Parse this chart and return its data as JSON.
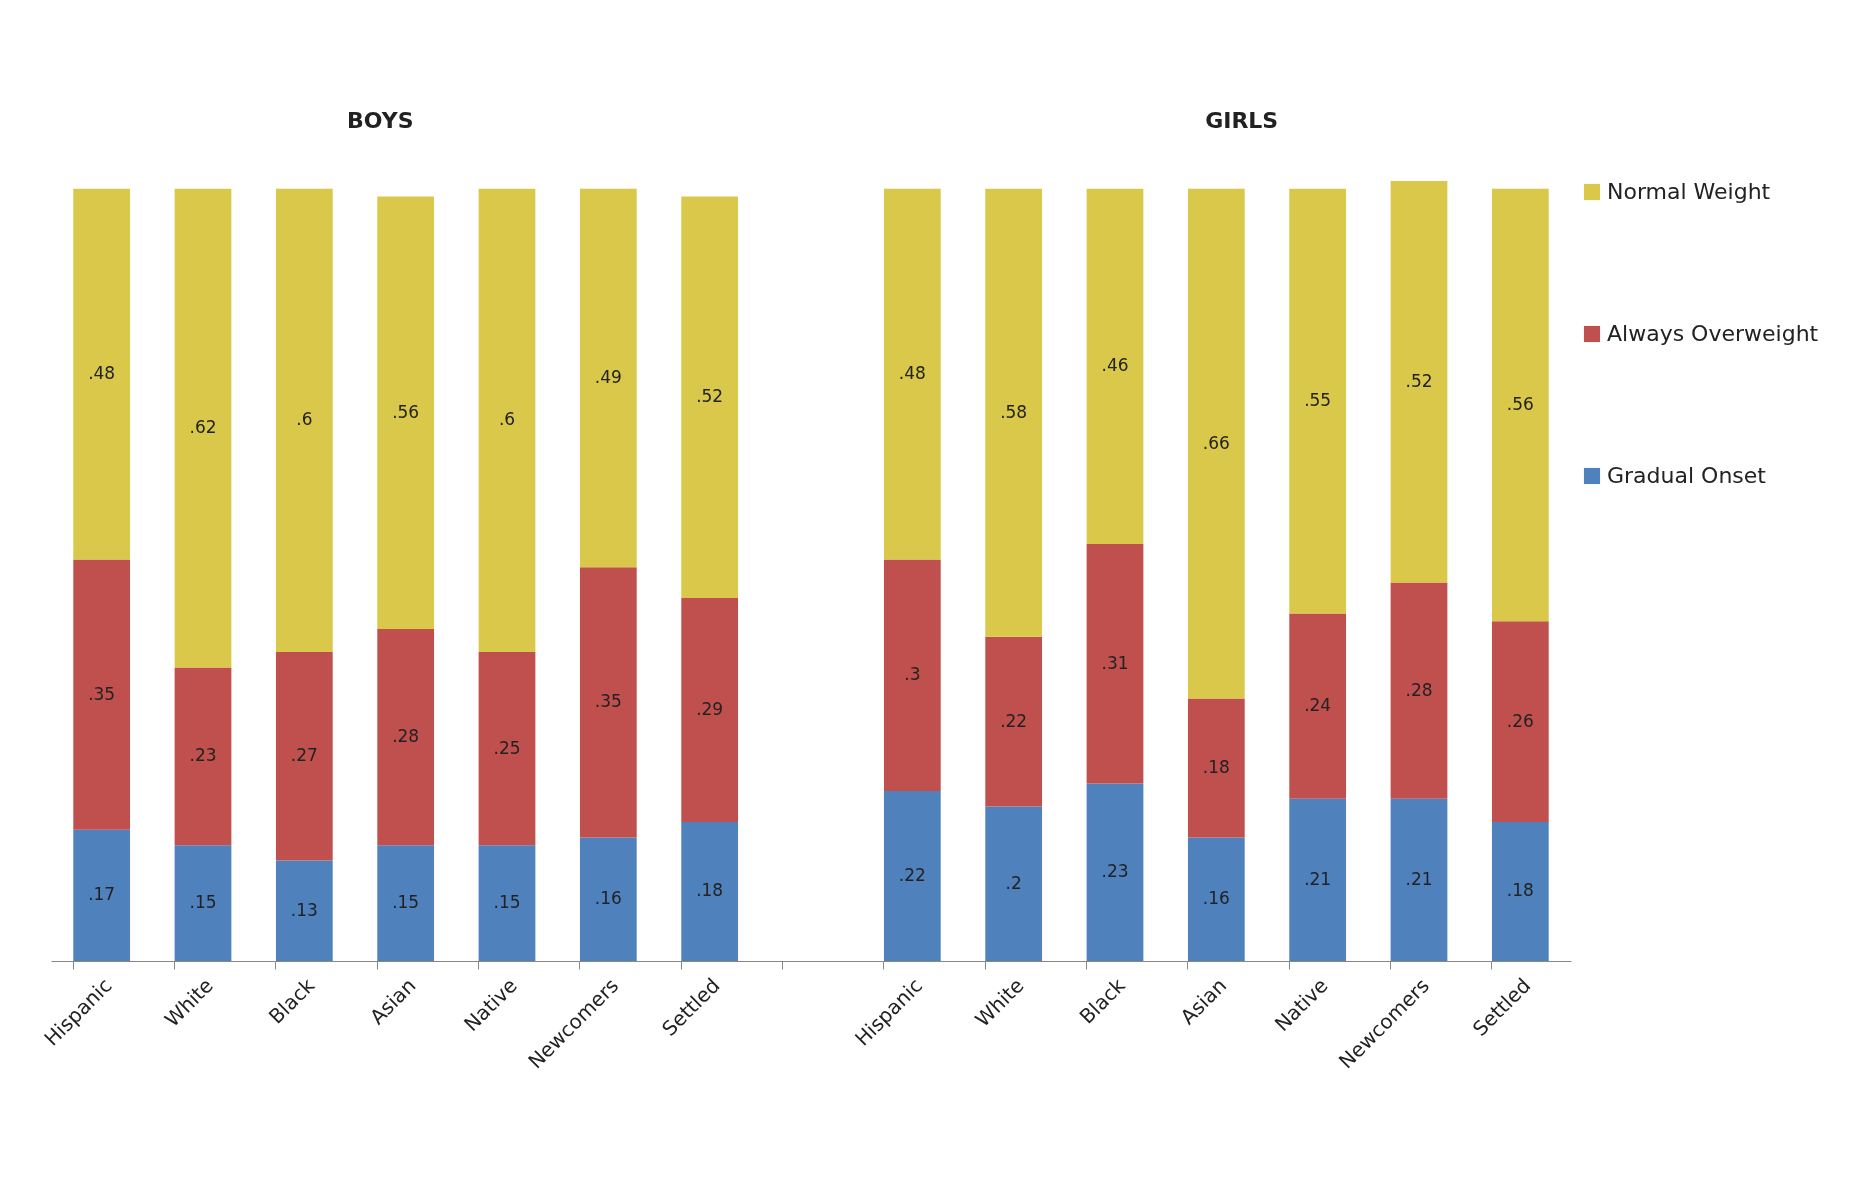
{
  "chart_data": {
    "type": "bar",
    "stacked": true,
    "legend": "right",
    "categories": [
      "Hispanic",
      "White",
      "Black",
      "Asian",
      "Native",
      "Newcomers",
      "Settled",
      null,
      "Hispanic",
      "White",
      "Black",
      "Asian",
      "Native",
      "Newcomers",
      "Settled"
    ],
    "series": [
      {
        "name": "Gradual Onset",
        "color": "#4f81bd",
        "values": [
          0.17,
          0.15,
          0.13,
          0.15,
          0.15,
          0.16,
          0.18,
          null,
          0.22,
          0.2,
          0.23,
          0.16,
          0.21,
          0.21,
          0.18
        ],
        "value_labels": [
          ".17",
          ".15",
          ".13",
          ".15",
          ".15",
          ".16",
          ".18",
          null,
          ".22",
          ".2",
          ".23",
          ".16",
          ".21",
          ".21",
          ".18"
        ]
      },
      {
        "name": "Always Overweight",
        "color": "#c0504d",
        "values": [
          0.35,
          0.23,
          0.27,
          0.28,
          0.25,
          0.35,
          0.29,
          null,
          0.3,
          0.22,
          0.31,
          0.18,
          0.24,
          0.28,
          0.26
        ],
        "value_labels": [
          ".35",
          ".23",
          ".27",
          ".28",
          ".25",
          ".35",
          ".29",
          null,
          ".3",
          ".22",
          ".31",
          ".18",
          ".24",
          ".28",
          ".26"
        ]
      },
      {
        "name": "Normal Weight",
        "color": "#d9c84a",
        "values": [
          0.48,
          0.62,
          0.6,
          0.56,
          0.6,
          0.49,
          0.52,
          null,
          0.48,
          0.58,
          0.46,
          0.66,
          0.55,
          0.52,
          0.56
        ],
        "value_labels": [
          ".48",
          ".62",
          ".6",
          ".56",
          ".6",
          ".49",
          ".52",
          null,
          ".48",
          ".58",
          ".46",
          ".66",
          ".55",
          ".52",
          ".56"
        ]
      }
    ],
    "annotations": [
      "BOYS",
      "GIRLS"
    ]
  }
}
